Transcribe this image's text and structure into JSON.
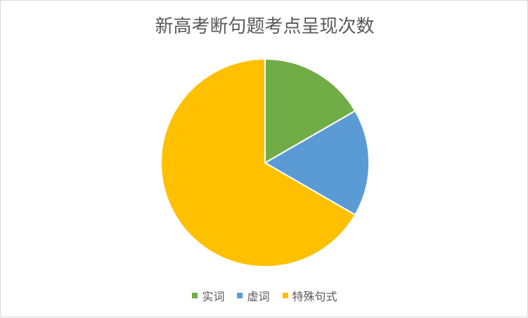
{
  "chart_data": {
    "type": "pie",
    "title": "新高考断句题考点呈现次数",
    "categories": [
      "实词",
      "虚词",
      "特殊句式"
    ],
    "values": [
      1,
      1,
      4
    ],
    "colors": [
      "#70AD47",
      "#5B9BD5",
      "#FFC000"
    ],
    "start_angle_deg": 0,
    "direction": "clockwise",
    "legend_position": "bottom"
  }
}
